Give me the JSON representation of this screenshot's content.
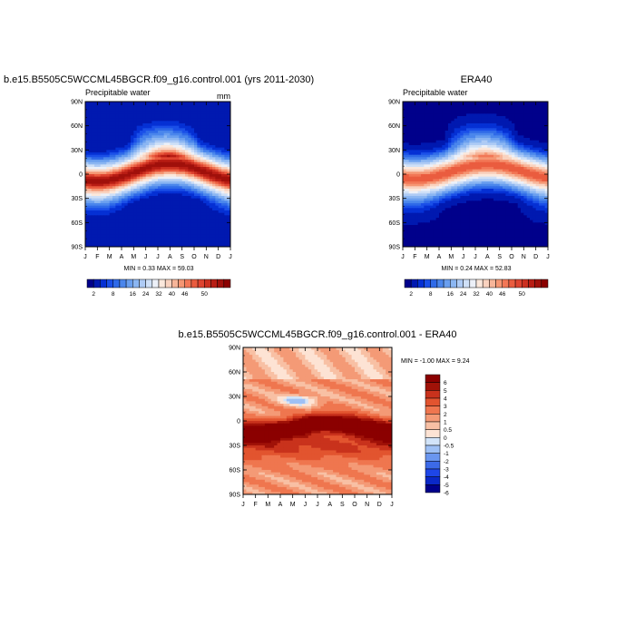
{
  "palette": {
    "full": [
      "#00008b",
      "#0019b0",
      "#0530d4",
      "#1a4fe8",
      "#2f6ae8",
      "#4a86ec",
      "#6a9fef",
      "#8bb6f2",
      "#aecbf5",
      "#cfe0f7",
      "#ecf0f8",
      "#fbe8dc",
      "#f9d2bf",
      "#f7b599",
      "#f59673",
      "#f27756",
      "#ea5c3f",
      "#de4430",
      "#cc3020",
      "#b81d14",
      "#a0100b",
      "#8b0000"
    ],
    "diff": [
      "#00008b",
      "#0a28c8",
      "#1e46e8",
      "#3c6ae8",
      "#6a96ef",
      "#9ec0f5",
      "#d2e4f9",
      "#fde3d4",
      "#f8c0a4",
      "#f49a76",
      "#ef764f",
      "#e2542f",
      "#c9321c",
      "#a01208",
      "#8b0000"
    ]
  },
  "chart_data": [
    {
      "type": "heatmap",
      "title": "b.e15.B5505C5WCCML45BGCR.f09_g16.control.001 (yrs 2011-2030)",
      "subtitle": "Precipitable water",
      "units": "mm",
      "x_labels": [
        "J",
        "F",
        "M",
        "A",
        "M",
        "J",
        "J",
        "A",
        "S",
        "O",
        "N",
        "D",
        "J"
      ],
      "y_labels": [
        "90N",
        "60N",
        "30N",
        "0",
        "30S",
        "60S",
        "90S"
      ],
      "stats": "MIN =   0.33 MAX =  59.03",
      "colorbar_labels": [
        "2",
        "8",
        "16",
        "24",
        "32",
        "40",
        "46",
        "50"
      ],
      "model": {
        "peak": 57,
        "eq_amp": 11,
        "eq_off": 2,
        "width": 15,
        "pole": 2,
        "nh_season": 14
      }
    },
    {
      "type": "heatmap",
      "title": "ERA40",
      "subtitle": "Precipitable water",
      "units": "",
      "x_labels": [
        "J",
        "F",
        "M",
        "A",
        "M",
        "J",
        "J",
        "A",
        "S",
        "O",
        "N",
        "D",
        "J"
      ],
      "y_labels": [
        "90N",
        "60N",
        "30N",
        "0",
        "30S",
        "60S",
        "90S"
      ],
      "stats": "MIN =   0.24 MAX =  52.83",
      "colorbar_labels": [
        "2",
        "8",
        "16",
        "24",
        "32",
        "40",
        "46",
        "50"
      ],
      "model": {
        "peak": 50,
        "eq_amp": 9,
        "eq_off": 3,
        "width": 15,
        "pole": 1.5,
        "nh_season": 13
      }
    },
    {
      "type": "heatmap",
      "title": "b.e15.B5505C5WCCML45BGCR.f09_g16.control.001 - ERA40",
      "x_labels": [
        "J",
        "F",
        "M",
        "A",
        "M",
        "J",
        "J",
        "A",
        "S",
        "O",
        "N",
        "D",
        "J"
      ],
      "y_labels": [
        "90N",
        "60N",
        "30N",
        "0",
        "30S",
        "60S",
        "90S"
      ],
      "stats": "MIN =  -1.00 MAX =   9.24",
      "colorbar_levels": [
        "6",
        "5",
        "4",
        "3",
        "2",
        "1",
        "0.5",
        "0",
        "-0.5",
        "-1",
        "-2",
        "-3",
        "-4",
        "-5",
        "-6"
      ]
    }
  ]
}
